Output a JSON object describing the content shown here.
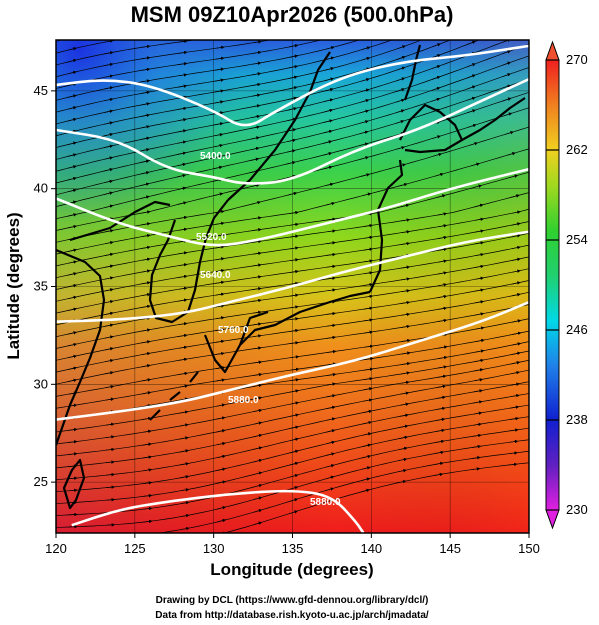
{
  "title": "MSM 09Z10Apr2026 (500.0hPa)",
  "xlabel": "Longitude (degrees)",
  "ylabel": "Latitude  (degrees)",
  "credits": [
    "Drawing by DCL (https://www.gfd-dennou.org/library/dcl/)",
    "Data from http://database.rish.kyoto-u.ac.jp/arch/jmadata/"
  ],
  "x_ticks": [
    120,
    125,
    130,
    135,
    140,
    145,
    150
  ],
  "y_ticks": [
    25,
    30,
    35,
    40,
    45
  ],
  "colorbar_ticks": [
    270,
    262,
    254,
    246,
    238,
    230
  ],
  "colorbar_range": [
    230,
    270
  ],
  "contour_labels": [
    "5400.0",
    "5520.0",
    "5640.0",
    "5760.0",
    "5880.0"
  ],
  "colors": {
    "cold": "#2030d0",
    "mid_cyan": "#00d0e0",
    "mid_green": "#30d040",
    "warm_orange": "#f08020",
    "hot_red": "#f02020",
    "magenta": "#d020d0"
  },
  "chart_data": {
    "type": "heatmap",
    "title": "MSM 09Z10Apr2026 (500.0hPa)",
    "xlabel": "Longitude (degrees)",
    "ylabel": "Latitude  (degrees)",
    "xlim": [
      120,
      150
    ],
    "ylim": [
      22.4,
      47.6
    ],
    "field": "temperature (K), shaded",
    "colorbar_range": [
      230,
      270
    ],
    "colorbar_ticks": [
      230,
      238,
      246,
      254,
      262,
      270
    ],
    "height_contours": [
      {
        "label": "5400.0",
        "points": [
          [
            120,
            45.3
          ],
          [
            123,
            45.6
          ],
          [
            126,
            45.3
          ],
          [
            130,
            44.0
          ],
          [
            132,
            43.0
          ],
          [
            134,
            44.0
          ],
          [
            138,
            45.7
          ],
          [
            142,
            46.5
          ],
          [
            146,
            46.8
          ],
          [
            150,
            47.3
          ]
        ]
      },
      {
        "label": "5520.0",
        "points": [
          [
            120,
            43.0
          ],
          [
            124,
            42.5
          ],
          [
            127,
            41.0
          ],
          [
            130,
            40.6
          ],
          [
            132,
            40.2
          ],
          [
            135,
            40.4
          ],
          [
            139,
            42.0
          ],
          [
            143,
            43.0
          ],
          [
            147,
            44.5
          ],
          [
            150,
            45.6
          ]
        ]
      },
      {
        "label": "5640.0",
        "points": [
          [
            120,
            39.5
          ],
          [
            124,
            38.2
          ],
          [
            127,
            37.6
          ],
          [
            130,
            37.0
          ],
          [
            133,
            37.4
          ],
          [
            137,
            38.2
          ],
          [
            141,
            39.0
          ],
          [
            145,
            40.0
          ],
          [
            150,
            41.0
          ]
        ]
      },
      {
        "label": "5760.0",
        "points": [
          [
            120,
            33.2
          ],
          [
            124,
            33.3
          ],
          [
            128,
            33.6
          ],
          [
            131,
            34.2
          ],
          [
            135,
            35.0
          ],
          [
            138,
            35.7
          ],
          [
            142,
            36.5
          ],
          [
            146,
            37.3
          ],
          [
            150,
            37.8
          ]
        ]
      },
      {
        "label": "5880.0",
        "points": [
          [
            120,
            28.2
          ],
          [
            124,
            28.6
          ],
          [
            128,
            29.1
          ],
          [
            131,
            29.7
          ],
          [
            135,
            30.5
          ],
          [
            139,
            31.2
          ],
          [
            143,
            32.2
          ],
          [
            147,
            33.2
          ],
          [
            150,
            34.2
          ]
        ]
      },
      {
        "label": "5880.0",
        "points": [
          [
            121,
            22.8
          ],
          [
            124,
            23.6
          ],
          [
            127,
            24.0
          ],
          [
            131,
            24.4
          ],
          [
            135,
            24.6
          ],
          [
            137.5,
            24.3
          ],
          [
            139,
            23.0
          ],
          [
            139.5,
            22.4
          ]
        ]
      }
    ]
  }
}
